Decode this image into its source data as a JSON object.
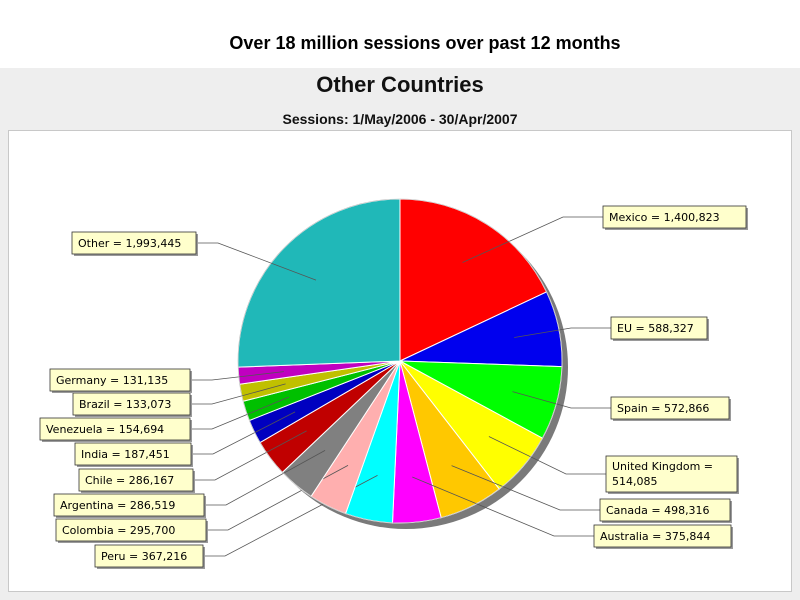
{
  "slide": {
    "title": "Over 18 million sessions over past 12 months"
  },
  "chart_data": {
    "type": "pie",
    "title": "Other Countries",
    "subtitle": "Sessions: 1/May/2006 - 30/Apr/2007",
    "slices": [
      {
        "label": "Mexico = 1,400,823",
        "name": "Mexico",
        "value": 1400823,
        "color": "#ff0000"
      },
      {
        "label": "EU = 588,327",
        "name": "EU",
        "value": 588327,
        "color": "#0000ee"
      },
      {
        "label": "Spain = 572,866",
        "name": "Spain",
        "value": 572866,
        "color": "#00ff00"
      },
      {
        "label": "United Kingdom = 514,085",
        "name": "United Kingdom",
        "value": 514085,
        "color": "#ffff00"
      },
      {
        "label": "Canada = 498,316",
        "name": "Canada",
        "value": 498316,
        "color": "#ffc800"
      },
      {
        "label": "Australia = 375,844",
        "name": "Australia",
        "value": 375844,
        "color": "#ff00ff"
      },
      {
        "label": "Peru = 367,216",
        "name": "Peru",
        "value": 367216,
        "color": "#00ffff"
      },
      {
        "label": "Colombia = 295,700",
        "name": "Colombia",
        "value": 295700,
        "color": "#ffafaf"
      },
      {
        "label": "Argentina = 286,519",
        "name": "Argentina",
        "value": 286519,
        "color": "#808080"
      },
      {
        "label": "Chile = 286,167",
        "name": "Chile",
        "value": 286167,
        "color": "#c00000"
      },
      {
        "label": "India = 187,451",
        "name": "India",
        "value": 187451,
        "color": "#0000c0"
      },
      {
        "label": "Venezuela = 154,694",
        "name": "Venezuela",
        "value": 154694,
        "color": "#00c000"
      },
      {
        "label": "Brazil = 133,073",
        "name": "Brazil",
        "value": 133073,
        "color": "#c0c000"
      },
      {
        "label": "Germany = 131,135",
        "name": "Germany",
        "value": 131135,
        "color": "#c000c0"
      },
      {
        "label": "Other = 1,993,445",
        "name": "Other",
        "value": 1993445,
        "color": "#20b8b8"
      }
    ],
    "legend": "callout-labels",
    "label_box_color": "#ffffcc"
  }
}
